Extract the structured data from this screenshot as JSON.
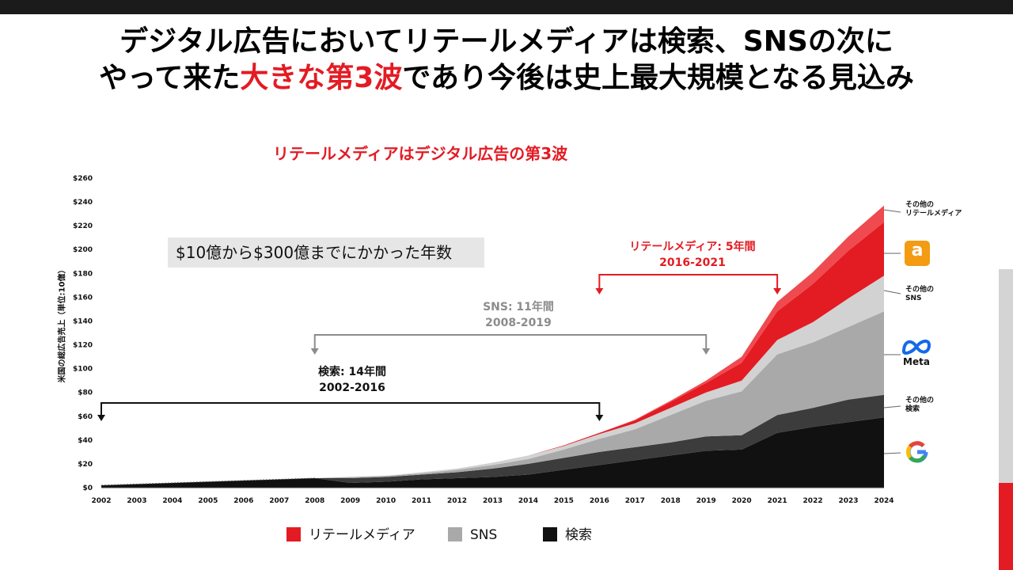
{
  "title": {
    "line1": "デジタル広告においてリテールメディアは検索、SNSの次に",
    "line2_pre": "やって来た",
    "line2_highlight": "大きな第3波",
    "line2_post": "であり今後は史上最大規模となる見込み"
  },
  "note_box": "$10億から$300億までにかかった年数",
  "annotations": {
    "search": {
      "label": "検索: 14年間",
      "range": "2002-2016"
    },
    "sns": {
      "label": "SNS: 11年間",
      "range": "2008-2019"
    },
    "retail": {
      "label": "リテールメディア: 5年間",
      "range": "2016-2021"
    }
  },
  "legend": [
    {
      "label": "リテールメディア",
      "color": "#e31b23"
    },
    {
      "label": "SNS",
      "color": "#a9a9a9"
    },
    {
      "label": "検索",
      "color": "#111111"
    }
  ],
  "side_labels": {
    "other_retail": [
      "その他の",
      "リテールメディア"
    ],
    "other_sns": [
      "その他の",
      "SNS"
    ],
    "meta": "Meta",
    "other_search": [
      "その他の",
      "検索"
    ]
  },
  "icons": {
    "amazon": "amazon-logo-icon",
    "meta": "meta-logo-icon",
    "google": "google-logo-icon"
  },
  "colors": {
    "retail_other": "#ef4a4f",
    "amazon": "#e31b23",
    "sns_other": "#d2d2d2",
    "meta": "#a9a9a9",
    "search_other": "#3c3c3c",
    "google": "#111111",
    "accent": "#e31b23"
  },
  "chart_data": {
    "type": "area",
    "title": "リテールメディアはデジタル広告の第3波",
    "ylabel": "米国の総広告売上（単位:10億）",
    "ylim": [
      0,
      260
    ],
    "yticks": [
      0,
      20,
      40,
      60,
      80,
      100,
      120,
      140,
      160,
      180,
      200,
      220,
      240,
      260
    ],
    "ytick_labels": [
      "$0",
      "$20",
      "$40",
      "$60",
      "$80",
      "$100",
      "$120",
      "$140",
      "$160",
      "$180",
      "$200",
      "$220",
      "$240",
      "$260"
    ],
    "x": [
      "2002",
      "2003",
      "2004",
      "2005",
      "2006",
      "2007",
      "2008",
      "2009",
      "2010",
      "2011",
      "2012",
      "2013",
      "2014",
      "2015",
      "2016",
      "2017",
      "2018",
      "2019",
      "2020",
      "2021",
      "2022",
      "2023",
      "2024"
    ],
    "stacked": true,
    "series": [
      {
        "name": "Google",
        "color": "#111111",
        "values": [
          2,
          3,
          4,
          5,
          6,
          7,
          8,
          4,
          5,
          7,
          8,
          9,
          11,
          15,
          19,
          23,
          27,
          31,
          32,
          46,
          51,
          55,
          59
        ]
      },
      {
        "name": "その他の検索",
        "color": "#3c3c3c",
        "values": [
          0,
          0,
          0,
          0,
          0,
          0,
          0,
          4,
          4,
          4,
          5,
          7,
          9,
          10,
          11,
          11,
          11,
          12,
          12,
          15,
          16,
          19,
          19
        ]
      },
      {
        "name": "Meta",
        "color": "#a9a9a9",
        "values": [
          0,
          0,
          0,
          0,
          0,
          0,
          0,
          1,
          1,
          1,
          2,
          3,
          4,
          7,
          11,
          15,
          23,
          30,
          37,
          51,
          55,
          61,
          70
        ]
      },
      {
        "name": "その他のSNS",
        "color": "#d2d2d2",
        "values": [
          0,
          0,
          0,
          0,
          0,
          0,
          0,
          0,
          0,
          1,
          1,
          2,
          3,
          3,
          4,
          5,
          6,
          7,
          9,
          12,
          17,
          24,
          30
        ]
      },
      {
        "name": "Amazon",
        "color": "#e31b23",
        "values": [
          0,
          0,
          0,
          0,
          0,
          0,
          0,
          0,
          0,
          0,
          0,
          0,
          0,
          0.5,
          1,
          2.5,
          5,
          8,
          15,
          24,
          32,
          40,
          45
        ]
      },
      {
        "name": "その他のリテールメディア",
        "color": "#ef4a4f",
        "values": [
          0,
          0,
          0,
          0,
          0,
          0,
          0,
          0,
          0,
          0,
          0,
          0,
          0,
          0,
          0,
          0.5,
          1,
          2,
          5,
          8,
          10,
          12,
          14
        ]
      }
    ]
  }
}
